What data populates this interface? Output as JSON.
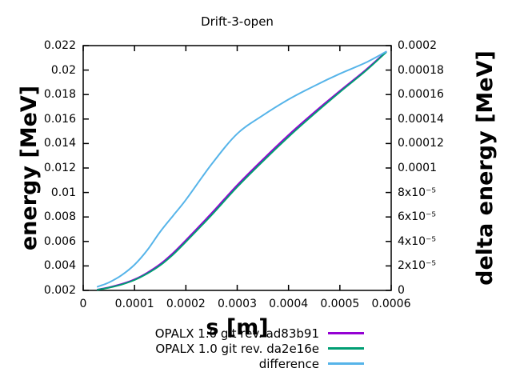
{
  "chart_data": {
    "type": "line",
    "title": "Drift-3-open",
    "xlabel": "s [m]",
    "ylabel": "energy [MeV]",
    "y2label": "delta energy [MeV]",
    "xlim": [
      0,
      0.0006
    ],
    "ylim": [
      0.002,
      0.022
    ],
    "y2lim": [
      0,
      0.0002
    ],
    "grid": false,
    "legend_position": "below-plot-right",
    "frame_color": "#000000",
    "xticks": {
      "values": [
        0,
        0.0001,
        0.0002,
        0.0003,
        0.0004,
        0.0005,
        0.0006
      ],
      "labels": [
        "0",
        "0.0001",
        "0.0002",
        "0.0003",
        "0.0004",
        "0.0005",
        "0.0006"
      ]
    },
    "yticks": {
      "values": [
        0.002,
        0.004,
        0.006,
        0.008,
        0.01,
        0.012,
        0.014,
        0.016,
        0.018,
        0.02,
        0.022
      ],
      "labels": [
        "0.002",
        "0.004",
        "0.006",
        "0.008",
        "0.01",
        "0.012",
        "0.014",
        "0.016",
        "0.018",
        "0.02",
        "0.022"
      ]
    },
    "y2ticks": {
      "values": [
        0,
        2e-05,
        4e-05,
        6e-05,
        8e-05,
        0.0001,
        0.00012,
        0.00014,
        0.00016,
        0.00018,
        0.0002
      ],
      "labels": [
        "0",
        "2x10⁻⁵",
        "4x10⁻⁵",
        "6x10⁻⁵",
        "8x10⁻⁵",
        "0.0001",
        "0.00012",
        "0.00014",
        "0.00016",
        "0.00018",
        "0.0002"
      ]
    },
    "x": [
      2.8e-05,
      5e-05,
      7.5e-05,
      0.0001,
      0.000125,
      0.00015,
      0.000175,
      0.0002,
      0.00025,
      0.0003,
      0.00035,
      0.0004,
      0.00045,
      0.0005,
      0.00055,
      0.00059
    ],
    "series": [
      {
        "name": "OPALX 1.0 git rev. ad83b91",
        "color": "#9400d3",
        "axis": "y1",
        "values": [
          0.00207,
          0.00225,
          0.00252,
          0.0029,
          0.00345,
          0.00415,
          0.00505,
          0.0061,
          0.0083,
          0.0106,
          0.0127,
          0.0147,
          0.01655,
          0.0183,
          0.02,
          0.0215
        ]
      },
      {
        "name": "OPALX 1.0 git rev. da2e16e",
        "color": "#009e73",
        "axis": "y1",
        "values": [
          0.00205,
          0.00222,
          0.00248,
          0.00285,
          0.00338,
          0.00405,
          0.00493,
          0.00597,
          0.00815,
          0.01045,
          0.01255,
          0.01455,
          0.01642,
          0.0182,
          0.01992,
          0.02145
        ]
      },
      {
        "name": "difference",
        "color": "#56b4e9",
        "axis": "y2",
        "values": [
          3e-06,
          6.5e-06,
          1.25e-05,
          2.1e-05,
          3.3e-05,
          4.8e-05,
          6.1e-05,
          7.4e-05,
          0.000103,
          0.000128,
          0.000143,
          0.000156,
          0.000167,
          0.000177,
          0.000186,
          0.000195
        ]
      }
    ]
  }
}
